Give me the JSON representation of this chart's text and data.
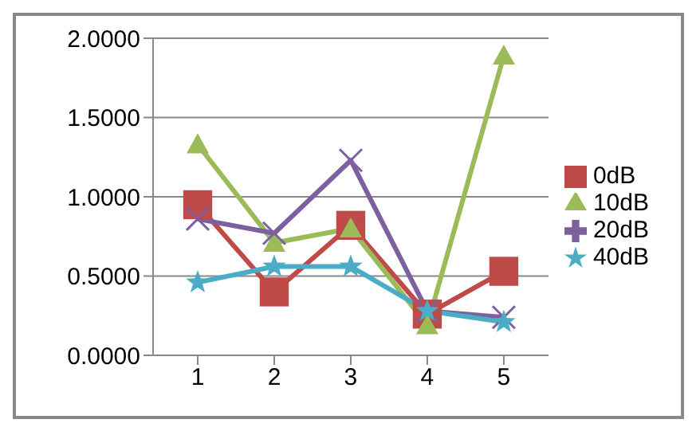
{
  "chart_data": {
    "type": "line",
    "categories": [
      "1",
      "2",
      "3",
      "4",
      "5"
    ],
    "series": [
      {
        "name": "0dB",
        "color": "#be4b48",
        "marker": "square",
        "values": [
          0.95,
          0.4,
          0.82,
          0.26,
          0.53
        ]
      },
      {
        "name": "10dB",
        "color": "#9bbb59",
        "marker": "triangle",
        "values": [
          1.33,
          0.71,
          0.8,
          0.19,
          1.89
        ]
      },
      {
        "name": "20dB",
        "color": "#7d60a0",
        "marker": "cross",
        "values": [
          0.86,
          0.77,
          1.23,
          0.28,
          0.24
        ]
      },
      {
        "name": "40dB",
        "color": "#4bacc6",
        "marker": "star",
        "values": [
          0.46,
          0.56,
          0.56,
          0.28,
          0.21
        ]
      }
    ],
    "ylim": [
      0,
      2
    ],
    "yticks": [
      {
        "value": 0,
        "label": "0.0000"
      },
      {
        "value": 0.5,
        "label": "0.5000"
      },
      {
        "value": 1,
        "label": "1.0000"
      },
      {
        "value": 1.5,
        "label": "1.5000"
      },
      {
        "value": 2,
        "label": "2.0000"
      }
    ],
    "grid": "y",
    "legend": "right"
  }
}
